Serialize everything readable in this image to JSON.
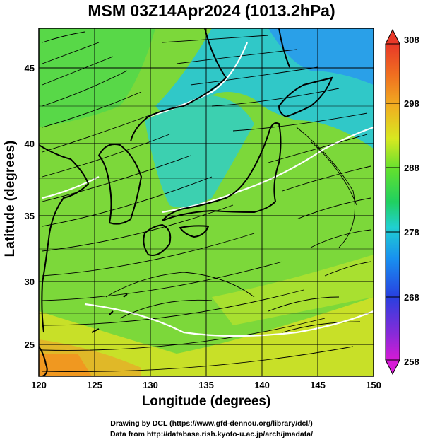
{
  "title": "MSM 03Z14Apr2024 (1013.2hPa)",
  "xlabel": "Longitude (degrees)",
  "ylabel": "Latitude  (degrees)",
  "credit_line1": "Drawing by DCL (https://www.gfd-dennou.org/library/dcl/)",
  "credit_line2": "Data from http://database.rish.kyoto-u.ac.jp/arch/jmadata/",
  "map": {
    "lon_range": [
      120,
      150
    ],
    "lat_range": [
      22.4,
      47.6
    ],
    "lon_ticks": [
      "120",
      "125",
      "130",
      "135",
      "140",
      "145",
      "150"
    ],
    "lat_ticks": [
      "25",
      "30",
      "35",
      "40",
      "45"
    ],
    "grid": true,
    "field": "air temperature (K)",
    "overlay": "streamlines"
  },
  "colorbar": {
    "ticks": [
      "308",
      "298",
      "288",
      "278",
      "268",
      "258"
    ],
    "range": [
      258,
      308
    ],
    "colors": [
      "#d61ad6",
      "#4040e0",
      "#20c8e0",
      "#20d040",
      "#e8e820",
      "#f08820",
      "#e83828"
    ]
  }
}
